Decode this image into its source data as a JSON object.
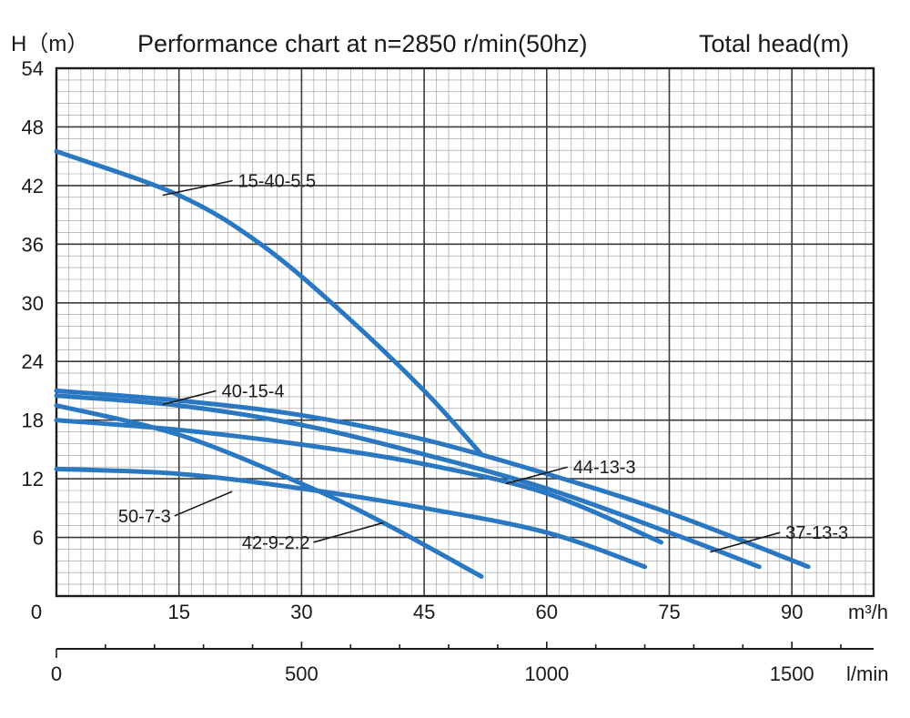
{
  "chart_data": {
    "type": "line",
    "title": "Performance chart at n=2850 r/min(50hz)",
    "y_label": "H（m）",
    "y_title_right": "Total head(m)",
    "x_unit": "m³/h",
    "x2_unit": "l/min",
    "xlim": [
      0,
      100
    ],
    "ylim": [
      0,
      54
    ],
    "x_ticks": [
      0,
      15,
      30,
      45,
      60,
      75,
      90
    ],
    "y_ticks": [
      6,
      12,
      18,
      24,
      30,
      36,
      42,
      48,
      54
    ],
    "x2_ticks": [
      0,
      500,
      1000,
      1500
    ],
    "grid": true,
    "series": [
      {
        "name": "15-40-5.5",
        "x": [
          0,
          15,
          25,
          35,
          45,
          52
        ],
        "y": [
          45.5,
          41,
          36,
          29,
          21,
          14.5
        ],
        "label_at": [
          13,
          41
        ],
        "text_at": [
          22,
          42.5
        ]
      },
      {
        "name": "40-15-4",
        "x": [
          0,
          15,
          30,
          45,
          60,
          75,
          86
        ],
        "y": [
          20.5,
          19.5,
          17.5,
          14.5,
          11,
          6.5,
          3
        ],
        "label_at": [
          13,
          19.6
        ],
        "text_at": [
          20,
          21
        ]
      },
      {
        "name": "37-13-3",
        "x": [
          0,
          15,
          30,
          45,
          60,
          75,
          92
        ],
        "y": [
          21,
          20,
          18.5,
          16,
          12.5,
          8.5,
          3
        ],
        "label_at": [
          80,
          4.5
        ],
        "text_at": [
          89,
          6.5
        ]
      },
      {
        "name": "44-13-3",
        "x": [
          0,
          15,
          30,
          45,
          60,
          74
        ],
        "y": [
          18,
          17,
          15.5,
          13.5,
          10.5,
          5.5
        ],
        "label_at": [
          55,
          11.5
        ],
        "text_at": [
          63,
          13.2
        ]
      },
      {
        "name": "50-7-3",
        "x": [
          0,
          15,
          30,
          45,
          60,
          72
        ],
        "y": [
          13,
          12.5,
          11,
          9,
          6.5,
          3
        ],
        "label_at": [
          21.5,
          10.7
        ],
        "text_at": [
          14,
          8.2
        ]
      },
      {
        "name": "42-9-2.2",
        "x": [
          0,
          15,
          30,
          40,
          52
        ],
        "y": [
          19.5,
          16.5,
          11.5,
          7.5,
          2
        ],
        "label_at": [
          40,
          7.5
        ],
        "text_at": [
          31,
          5.5
        ]
      }
    ]
  }
}
